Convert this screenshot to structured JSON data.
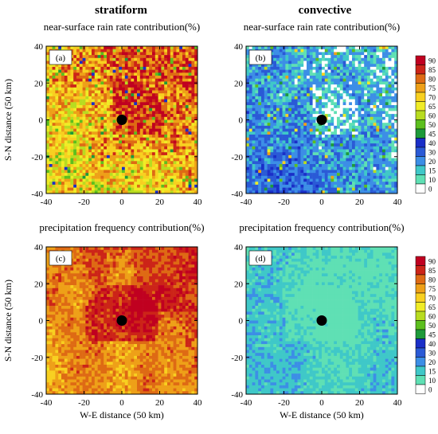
{
  "columns": {
    "left": "stratiform",
    "right": "convective"
  },
  "chart_data": [
    {
      "type": "heatmap",
      "panel": "(a)",
      "title": "near-surface rain rate contribution(%)",
      "xlabel": "",
      "ylabel": "S-N distance (50 km)",
      "xlim": [
        -40,
        40
      ],
      "ylim": [
        -40,
        40
      ],
      "xticks": [
        "-40",
        "-20",
        "0",
        "20",
        "40"
      ],
      "yticks": [
        "-40",
        "-20",
        "0",
        "20",
        "40"
      ],
      "marker": {
        "x": 0,
        "y": 0
      },
      "pattern": "stratiform_rain",
      "description_values": "mostly 70-90, highest (85-90+) to the north-east of center, scattered lower values to south-west"
    },
    {
      "type": "heatmap",
      "panel": "(b)",
      "title": "near-surface rain rate contribution(%)",
      "xlabel": "",
      "ylabel": "",
      "xlim": [
        -40,
        40
      ],
      "ylim": [
        -40,
        40
      ],
      "xticks": [
        "-40",
        "-20",
        "0",
        "20",
        "40"
      ],
      "yticks": [
        "-40",
        "-20",
        "0",
        "20",
        "40"
      ],
      "marker": {
        "x": 0,
        "y": 0
      },
      "pattern": "convective_rain"
    },
    {
      "type": "heatmap",
      "panel": "(c)",
      "title": "precipitation frequency contribution(%)",
      "xlabel": "W-E distance (50 km)",
      "ylabel": "S-N distance (50 km)",
      "xlim": [
        -40,
        40
      ],
      "ylim": [
        -40,
        40
      ],
      "xticks": [
        "-40",
        "-20",
        "0",
        "20",
        "40"
      ],
      "yticks": [
        "-40",
        "-20",
        "0",
        "20",
        "40"
      ],
      "marker": {
        "x": 0,
        "y": 0
      },
      "pattern": "stratiform_freq"
    },
    {
      "type": "heatmap",
      "panel": "(d)",
      "title": "precipitation frequency contribution(%)",
      "xlabel": "W-E distance (50 km)",
      "ylabel": "",
      "xlim": [
        -40,
        40
      ],
      "ylim": [
        -40,
        40
      ],
      "xticks": [
        "-40",
        "-20",
        "0",
        "20",
        "40"
      ],
      "yticks": [
        "-40",
        "-20",
        "0",
        "20",
        "40"
      ],
      "marker": {
        "x": 0,
        "y": 0
      },
      "pattern": "convective_freq"
    }
  ],
  "colorbar": {
    "levels": [
      "0",
      "10",
      "15",
      "20",
      "30",
      "40",
      "45",
      "50",
      "60",
      "65",
      "70",
      "75",
      "80",
      "85",
      "90"
    ],
    "colors": [
      "#ffffff",
      "#5fe0b4",
      "#3fc8c8",
      "#3c8ee6",
      "#2a5ad6",
      "#1a2fc8",
      "#1e9a3a",
      "#5cbf1e",
      "#b8dc20",
      "#f0ec26",
      "#f8d020",
      "#eea018",
      "#de6a14",
      "#cc2418",
      "#c00020"
    ]
  }
}
